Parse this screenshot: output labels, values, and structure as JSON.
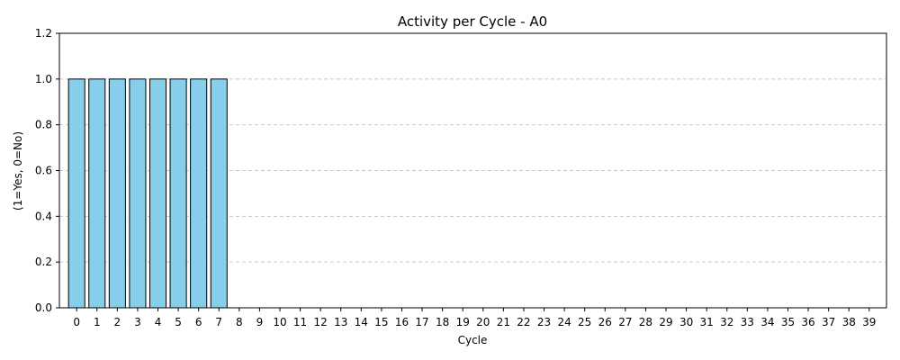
{
  "chart_data": {
    "type": "bar",
    "title": "Activity per Cycle - A0",
    "xlabel": "Cycle",
    "ylabel": "(1=Yes, 0=No)",
    "categories": [
      "0",
      "1",
      "2",
      "3",
      "4",
      "5",
      "6",
      "7",
      "8",
      "9",
      "10",
      "11",
      "12",
      "13",
      "14",
      "15",
      "16",
      "17",
      "18",
      "19",
      "20",
      "21",
      "22",
      "23",
      "24",
      "25",
      "26",
      "27",
      "28",
      "29",
      "30",
      "31",
      "32",
      "33",
      "34",
      "35",
      "36",
      "37",
      "38",
      "39"
    ],
    "values": [
      1,
      1,
      1,
      1,
      1,
      1,
      1,
      1,
      0,
      0,
      0,
      0,
      0,
      0,
      0,
      0,
      0,
      0,
      0,
      0,
      0,
      0,
      0,
      0,
      0,
      0,
      0,
      0,
      0,
      0,
      0,
      0,
      0,
      0,
      0,
      0,
      0,
      0,
      0,
      0
    ],
    "ylim": [
      0,
      1.2
    ],
    "yticks": [
      "0.0",
      "0.2",
      "0.4",
      "0.6",
      "0.8",
      "1.0",
      "1.2"
    ],
    "grid": "y-dashed",
    "bar_color": "#87ceeb",
    "edge_color": "#000000",
    "grid_color": "#c8c8c8"
  }
}
